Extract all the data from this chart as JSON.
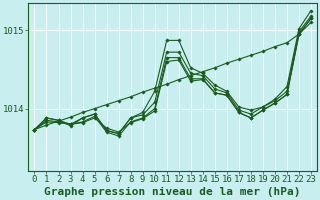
{
  "bg_color": "#c8eef0",
  "line_color": "#1a5c1a",
  "grid_color": "#ffffff",
  "title": "Graphe pression niveau de la mer (hPa)",
  "ylim": [
    1013.2,
    1015.35
  ],
  "xlim": [
    -0.5,
    23.5
  ],
  "yticks": [
    1014,
    1015
  ],
  "xticks": [
    0,
    1,
    2,
    3,
    4,
    5,
    6,
    7,
    8,
    9,
    10,
    11,
    12,
    13,
    14,
    15,
    16,
    17,
    18,
    19,
    20,
    21,
    22,
    23
  ],
  "title_fontsize": 8,
  "tick_fontsize": 6.5,
  "s_zigzag": [
    1013.73,
    1013.88,
    1013.85,
    1013.78,
    1013.88,
    1013.93,
    1013.72,
    1013.68,
    1013.88,
    1013.95,
    1014.22,
    1014.87,
    1014.87,
    1014.52,
    1014.45,
    1014.3,
    1014.22,
    1014.02,
    1013.98,
    1014.02,
    1014.12,
    1014.28,
    1015.02,
    1015.25
  ],
  "s_cluster1": [
    1013.73,
    1013.88,
    1013.85,
    1013.8,
    1013.88,
    1013.93,
    1013.72,
    1013.68,
    1013.88,
    1013.92,
    1014.08,
    1014.72,
    1014.72,
    1014.45,
    1014.42,
    1014.25,
    1014.2,
    1013.98,
    1013.93,
    1014.02,
    1014.1,
    1014.22,
    1014.98,
    1015.18
  ],
  "s_cluster2": [
    1013.73,
    1013.85,
    1013.83,
    1013.8,
    1013.83,
    1013.9,
    1013.7,
    1013.65,
    1013.83,
    1013.88,
    1014.0,
    1014.65,
    1014.65,
    1014.38,
    1014.38,
    1014.2,
    1014.17,
    1013.95,
    1013.88,
    1013.98,
    1014.07,
    1014.18,
    1014.95,
    1015.15
  ],
  "s_cluster3": [
    1013.73,
    1013.83,
    1013.82,
    1013.8,
    1013.82,
    1013.88,
    1013.75,
    1013.7,
    1013.82,
    1013.87,
    1013.97,
    1014.6,
    1014.62,
    1014.35,
    1014.37,
    1014.2,
    1014.17,
    1013.95,
    1013.88,
    1013.98,
    1014.07,
    1014.18,
    1014.95,
    1015.15
  ],
  "s_linear": [
    1013.73,
    1013.79,
    1013.84,
    1013.89,
    1013.95,
    1014.0,
    1014.05,
    1014.1,
    1014.15,
    1014.21,
    1014.26,
    1014.31,
    1014.37,
    1014.42,
    1014.47,
    1014.52,
    1014.58,
    1014.63,
    1014.68,
    1014.73,
    1014.79,
    1014.84,
    1014.95,
    1015.1
  ]
}
